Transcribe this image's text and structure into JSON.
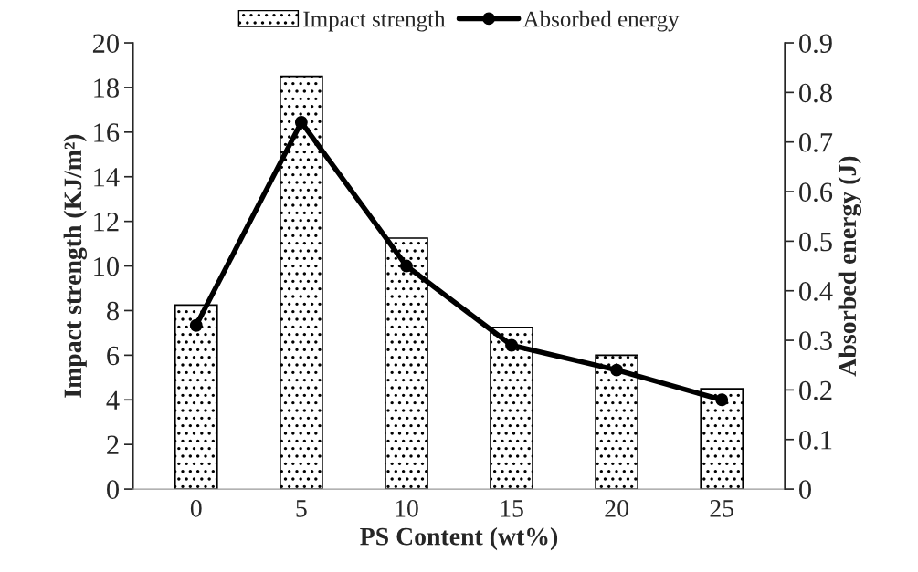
{
  "chart_data": {
    "type": "bar",
    "xlabel": "PS Content (wt%)",
    "ylabel": "Impact strength (KJ/m²)",
    "y2label": "Absorbed energy (J)",
    "categories": [
      "0",
      "5",
      "10",
      "15",
      "20",
      "25"
    ],
    "series": [
      {
        "name": "Impact strength",
        "color": "#000000",
        "values": [
          8.25,
          18.5,
          11.25,
          7.25,
          6.0,
          4.5
        ]
      },
      {
        "name": "Absorbed energy",
        "type": "line",
        "axis": "y2",
        "color": "#000000",
        "marker": "circle",
        "values": [
          0.33,
          0.74,
          0.45,
          0.29,
          0.24,
          0.18
        ]
      }
    ],
    "ylim": [
      0,
      20
    ],
    "yticks": [
      0,
      2,
      4,
      6,
      8,
      10,
      12,
      14,
      16,
      18,
      20
    ],
    "y2lim": [
      0,
      0.9
    ],
    "y2ticks": [
      0,
      0.1,
      0.2,
      0.3,
      0.4,
      0.5,
      0.6,
      0.7,
      0.8,
      0.9
    ],
    "legend": "top",
    "grid": false
  }
}
